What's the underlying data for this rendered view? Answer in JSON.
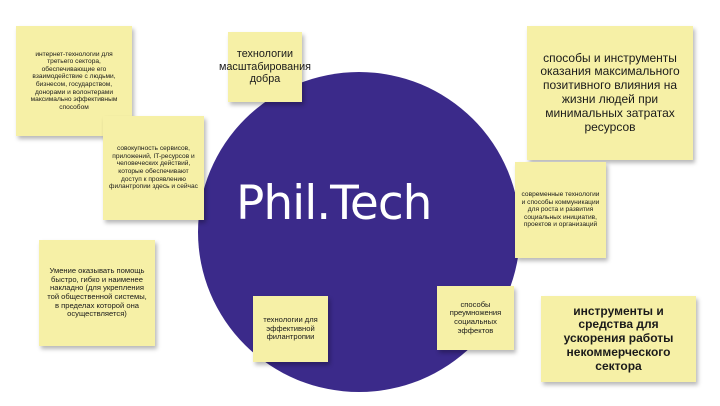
{
  "logo": {
    "text": "Phil.Tech"
  },
  "notes": [
    {
      "text": "интернет-технологии для третьего сектора, обеспечивающие его взаимодействие с людьми, бизнесом, государством, донорами и волонтерами максимально эффективным способом"
    },
    {
      "text": "технологии масштабирования добра"
    },
    {
      "text": "способы и инструменты оказания максимального позитивного влияния на жизни людей при минимальных затратах ресурсов"
    },
    {
      "text": "совокупность сервисов, приложений, IT-ресурсов и человеческих действий, которые обеспечивают доступ к проявлению филантропии здесь и сейчас"
    },
    {
      "text": "современные технологии и способы коммуникации для роста и развития социальных инициатив, проектов и организаций"
    },
    {
      "text": "Умение оказывать помощь быстро, гибко и наименее накладно (для укрепления той общественной системы, в пределах которой она осуществляется)"
    },
    {
      "text": "технологии для эффективной филантропии"
    },
    {
      "text": "способы преумножения социальных эффектов"
    },
    {
      "text": "инструменты и средства для ускорения работы некоммерческого сектора"
    }
  ]
}
